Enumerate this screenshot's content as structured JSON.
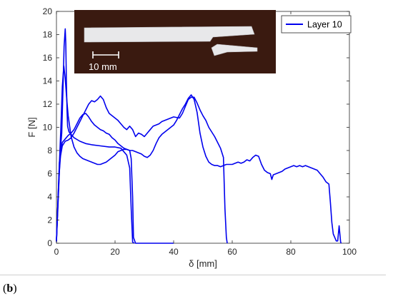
{
  "panel_label": {
    "open": "(",
    "letter": "b",
    "close": ")"
  },
  "inset": {
    "scale_bar_label": "10 mm",
    "background_color": "#3a1a10",
    "specimen_color": "#e8e8ea"
  },
  "chart_data": {
    "type": "line",
    "xlabel": "δ [mm]",
    "ylabel": "F [N]",
    "xlim": [
      0,
      100
    ],
    "ylim": [
      0,
      20
    ],
    "x_ticks": [
      "0",
      "20",
      "40",
      "60",
      "80",
      "100"
    ],
    "y_ticks": [
      "0",
      "2",
      "4",
      "6",
      "8",
      "10",
      "12",
      "14",
      "16",
      "18",
      "20"
    ],
    "grid": false,
    "legend_position": "top-right",
    "series_color": "#0000ee",
    "series": [
      {
        "name": "Layer 10",
        "points": [
          [
            0,
            0.2
          ],
          [
            0.4,
            2.8
          ],
          [
            0.9,
            5.8
          ],
          [
            1.4,
            8.2
          ],
          [
            1.8,
            9.5
          ],
          [
            2.2,
            13
          ],
          [
            2.6,
            17
          ],
          [
            3.0,
            18.5
          ],
          [
            3.2,
            17.2
          ],
          [
            3.4,
            14
          ],
          [
            3.6,
            11.5
          ],
          [
            3.8,
            10.1
          ],
          [
            4.3,
            9.6
          ],
          [
            6,
            9.1
          ],
          [
            8,
            8.8
          ],
          [
            10,
            8.6
          ],
          [
            12,
            8.5
          ],
          [
            15,
            8.4
          ],
          [
            18,
            8.3
          ],
          [
            20,
            8.3
          ],
          [
            22,
            8.2
          ],
          [
            24,
            7.6
          ],
          [
            25,
            6.5
          ],
          [
            25.5,
            3
          ],
          [
            26,
            0.1
          ],
          [
            26.5,
            0
          ]
        ]
      },
      {
        "points": [
          [
            0,
            0.2
          ],
          [
            0.5,
            3
          ],
          [
            1.0,
            6.2
          ],
          [
            1.5,
            8
          ],
          [
            2,
            8.7
          ],
          [
            3,
            9
          ],
          [
            4,
            9.3
          ],
          [
            5,
            9.5
          ],
          [
            6,
            9.8
          ],
          [
            7,
            10.3
          ],
          [
            8,
            10.8
          ],
          [
            9,
            11.1
          ],
          [
            10,
            11.2
          ],
          [
            11,
            10.9
          ],
          [
            12,
            10.5
          ],
          [
            13,
            10.2
          ],
          [
            14,
            10.0
          ],
          [
            15,
            9.8
          ],
          [
            16,
            9.7
          ],
          [
            17,
            9.5
          ],
          [
            18,
            9.4
          ],
          [
            19,
            9.1
          ],
          [
            20,
            8.9
          ],
          [
            21,
            8.6
          ],
          [
            22,
            8.4
          ],
          [
            23,
            8.2
          ],
          [
            24,
            8.1
          ],
          [
            25,
            8.0
          ],
          [
            25.5,
            7.3
          ],
          [
            26,
            4
          ],
          [
            26.3,
            0.5
          ],
          [
            27,
            0
          ],
          [
            40,
            0
          ]
        ]
      },
      {
        "points": [
          [
            0,
            0.3
          ],
          [
            0.5,
            3.5
          ],
          [
            1,
            7.0
          ],
          [
            1.5,
            7.7
          ],
          [
            2,
            8.4
          ],
          [
            3,
            8.8
          ],
          [
            4,
            8.9
          ],
          [
            5,
            9.1
          ],
          [
            6,
            9.5
          ],
          [
            7,
            10.0
          ],
          [
            8,
            10.5
          ],
          [
            9,
            11.0
          ],
          [
            10,
            11.5
          ],
          [
            11,
            12.0
          ],
          [
            12,
            12.3
          ],
          [
            13,
            12.2
          ],
          [
            14,
            12.4
          ],
          [
            15,
            12.7
          ],
          [
            16,
            12.4
          ],
          [
            17,
            11.7
          ],
          [
            18,
            11.2
          ],
          [
            19,
            11.0
          ],
          [
            20,
            10.8
          ],
          [
            21,
            10.6
          ],
          [
            22,
            10.3
          ],
          [
            23,
            10.0
          ],
          [
            24,
            9.8
          ],
          [
            25,
            10.1
          ],
          [
            26,
            9.8
          ],
          [
            27,
            9.2
          ],
          [
            28,
            9.5
          ],
          [
            29,
            9.4
          ],
          [
            30,
            9.2
          ],
          [
            31,
            9.5
          ],
          [
            32,
            9.8
          ],
          [
            33,
            10.1
          ],
          [
            34,
            10.2
          ],
          [
            35,
            10.3
          ],
          [
            36,
            10.5
          ],
          [
            37,
            10.6
          ],
          [
            38,
            10.7
          ],
          [
            39,
            10.8
          ],
          [
            40,
            10.9
          ],
          [
            42,
            10.8
          ],
          [
            43,
            11.2
          ],
          [
            44,
            11.8
          ],
          [
            45,
            12.4
          ],
          [
            46,
            12.6
          ],
          [
            47,
            12.6
          ],
          [
            48,
            12.1
          ],
          [
            49,
            11.5
          ],
          [
            50,
            11.0
          ],
          [
            51,
            10.6
          ],
          [
            52,
            10.0
          ],
          [
            53,
            9.6
          ],
          [
            54,
            9.2
          ],
          [
            55,
            8.7
          ],
          [
            56,
            8.2
          ],
          [
            57,
            7.4
          ],
          [
            57.5,
            3
          ],
          [
            58,
            0.5
          ],
          [
            58.3,
            0
          ]
        ]
      },
      {
        "points": [
          [
            0,
            0.1
          ],
          [
            0.5,
            3.5
          ],
          [
            1.0,
            6.8
          ],
          [
            1.5,
            10.0
          ],
          [
            2,
            13.5
          ],
          [
            2.5,
            15.3
          ],
          [
            3,
            14.2
          ],
          [
            3.5,
            12.5
          ],
          [
            4,
            11.0
          ],
          [
            5,
            9.2
          ],
          [
            6,
            8.3
          ],
          [
            7,
            7.8
          ],
          [
            8,
            7.5
          ],
          [
            9,
            7.3
          ],
          [
            10,
            7.2
          ],
          [
            11,
            7.1
          ],
          [
            12,
            7.0
          ],
          [
            13,
            6.9
          ],
          [
            14,
            6.8
          ],
          [
            15,
            6.8
          ],
          [
            16,
            6.9
          ],
          [
            17,
            7.0
          ],
          [
            18,
            7.2
          ],
          [
            19,
            7.4
          ],
          [
            20,
            7.6
          ],
          [
            21,
            7.9
          ],
          [
            22,
            8.0
          ],
          [
            23,
            8.1
          ],
          [
            24,
            8.1
          ],
          [
            25,
            8.0
          ],
          [
            26,
            8.0
          ],
          [
            27,
            7.9
          ],
          [
            28,
            7.8
          ],
          [
            29,
            7.7
          ],
          [
            30,
            7.5
          ],
          [
            31,
            7.4
          ],
          [
            32,
            7.6
          ],
          [
            33,
            8.0
          ],
          [
            34,
            8.6
          ],
          [
            35,
            9.1
          ],
          [
            36,
            9.4
          ],
          [
            37,
            9.6
          ],
          [
            38,
            9.8
          ],
          [
            39,
            10.0
          ],
          [
            40,
            10.2
          ],
          [
            41,
            10.6
          ],
          [
            42,
            11.1
          ],
          [
            43,
            11.6
          ],
          [
            44,
            12.0
          ],
          [
            45,
            12.5
          ],
          [
            46,
            12.8
          ],
          [
            47,
            12.4
          ],
          [
            48,
            11.3
          ],
          [
            49,
            9.5
          ],
          [
            50,
            8.3
          ],
          [
            51,
            7.5
          ],
          [
            52,
            7.0
          ],
          [
            53,
            6.8
          ],
          [
            54,
            6.7
          ],
          [
            55,
            6.7
          ],
          [
            56,
            6.6
          ],
          [
            57,
            6.7
          ],
          [
            58,
            6.8
          ],
          [
            59,
            6.8
          ],
          [
            60,
            6.8
          ],
          [
            61,
            6.9
          ],
          [
            62,
            7.0
          ],
          [
            63,
            6.9
          ],
          [
            64,
            7.0
          ],
          [
            65,
            7.2
          ],
          [
            66,
            7.1
          ],
          [
            67,
            7.4
          ],
          [
            68,
            7.6
          ],
          [
            69,
            7.5
          ],
          [
            70,
            6.8
          ],
          [
            71,
            6.3
          ],
          [
            72,
            6.1
          ],
          [
            73,
            6.0
          ],
          [
            73.5,
            5.5
          ],
          [
            74,
            5.9
          ],
          [
            75,
            6.0
          ],
          [
            76,
            6.1
          ],
          [
            77,
            6.2
          ],
          [
            78,
            6.4
          ],
          [
            79,
            6.5
          ],
          [
            80,
            6.6
          ],
          [
            81,
            6.7
          ],
          [
            82,
            6.6
          ],
          [
            83,
            6.7
          ],
          [
            84,
            6.6
          ],
          [
            85,
            6.7
          ],
          [
            86,
            6.6
          ],
          [
            87,
            6.5
          ],
          [
            88,
            6.4
          ],
          [
            89,
            6.3
          ],
          [
            90,
            6.0
          ],
          [
            91,
            5.7
          ],
          [
            92,
            5.3
          ],
          [
            93,
            5.1
          ],
          [
            93.5,
            3.5
          ],
          [
            94,
            1.8
          ],
          [
            94.5,
            0.8
          ],
          [
            95,
            0.5
          ],
          [
            95.5,
            0.2
          ],
          [
            96,
            0.2
          ],
          [
            96.5,
            1.5
          ],
          [
            97,
            0.1
          ],
          [
            97.2,
            0
          ]
        ]
      }
    ]
  }
}
